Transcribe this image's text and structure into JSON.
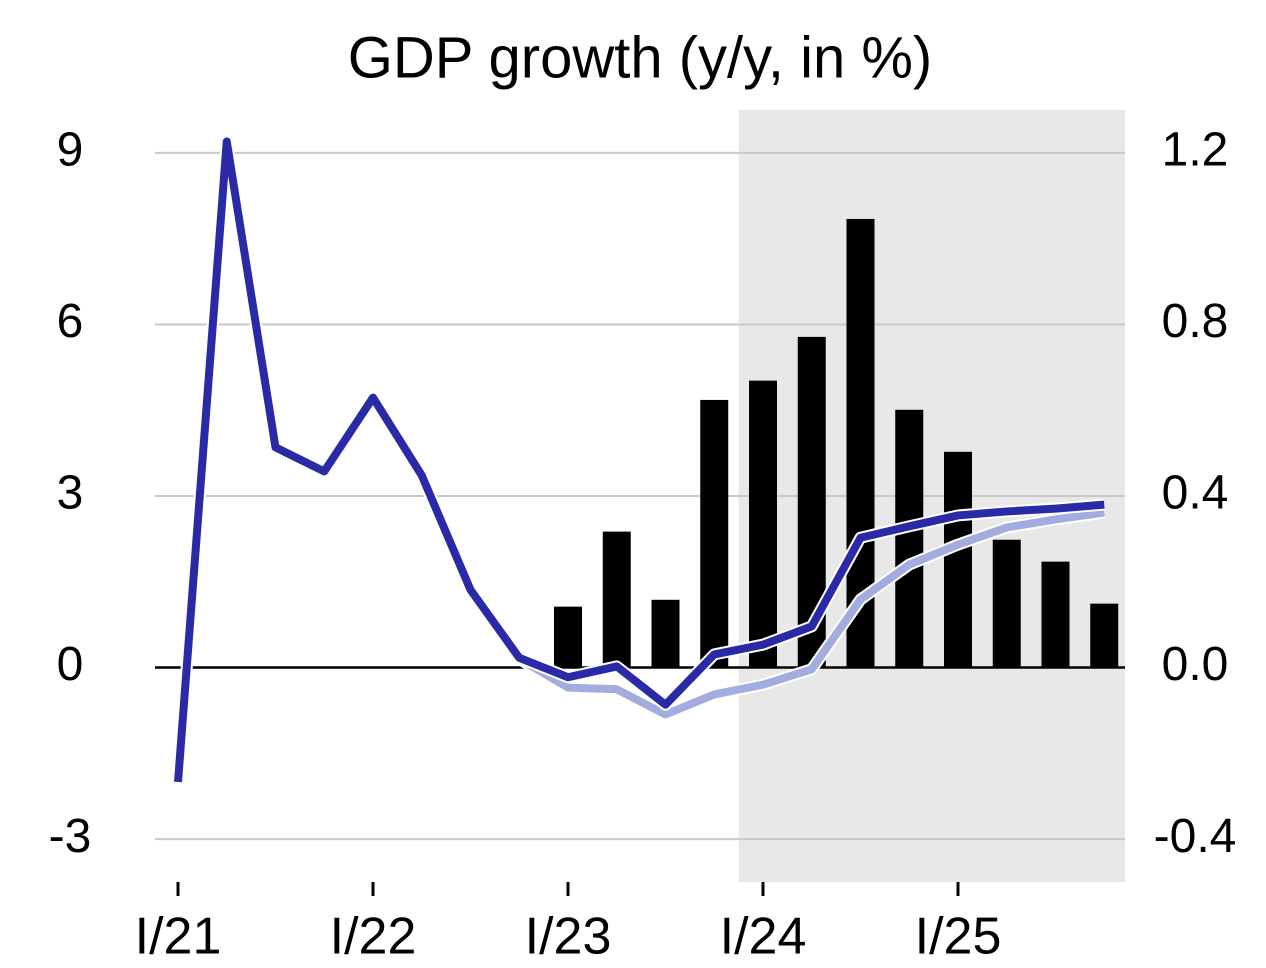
{
  "chart_data": {
    "type": "line",
    "title": "GDP growth (y/y, in %)",
    "categories": [
      "I/21",
      null,
      null,
      null,
      "I/22",
      null,
      null,
      null,
      "I/23",
      null,
      null,
      null,
      "I/24",
      null,
      null,
      null,
      "I/25",
      null,
      null,
      null
    ],
    "series": [
      {
        "type": "bar",
        "axis": "y2",
        "color": "#000000",
        "values": [
          null,
          null,
          null,
          null,
          null,
          null,
          null,
          null,
          0.142,
          0.317,
          0.158,
          0.624,
          0.669,
          0.771,
          1.046,
          0.601,
          0.503,
          0.298,
          0.247,
          0.149
        ]
      },
      {
        "type": "line",
        "color": "#a3acdf",
        "values": [
          null,
          null,
          null,
          null,
          null,
          null,
          null,
          0.15,
          -0.35,
          -0.38,
          -0.82,
          -0.47,
          -0.3,
          -0.03,
          1.19,
          1.8,
          2.15,
          2.45,
          2.59,
          2.71
        ]
      },
      {
        "type": "line",
        "color": "#2a2aa6",
        "values": [
          -2.0,
          9.2,
          3.85,
          3.43,
          4.72,
          3.36,
          1.36,
          0.17,
          -0.17,
          0.02,
          -0.65,
          0.23,
          0.4,
          0.72,
          2.27,
          2.47,
          2.66,
          2.73,
          2.78,
          2.85
        ]
      }
    ],
    "ylim": [
      -3.75,
      9.75
    ],
    "yticks": [
      9,
      6,
      3,
      0,
      -3
    ],
    "y2lim": [
      -0.5,
      1.3
    ],
    "y2ticks": [
      1.2,
      0.8,
      0.4,
      {
        "value": 0,
        "label": "0.0"
      },
      -0.4
    ],
    "grid": true,
    "shade": {
      "from": 11.5,
      "to": 19.5,
      "color": "#e8e8e8"
    }
  }
}
